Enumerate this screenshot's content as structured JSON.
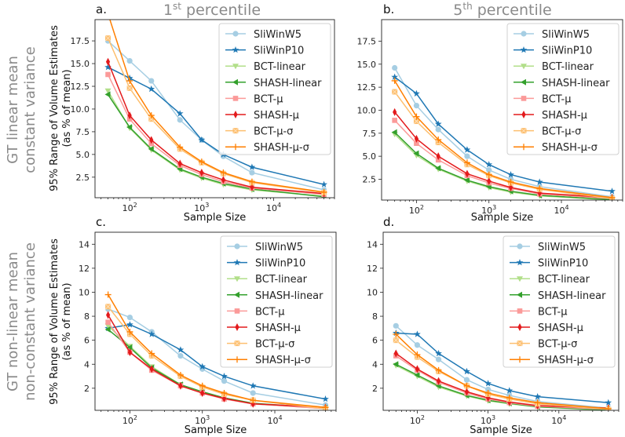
{
  "row_labels": [
    {
      "line1": "GT linear mean",
      "line2": "constant variance"
    },
    {
      "line1": "GT non-linear mean",
      "line2": "non-constant variance"
    }
  ],
  "column_titles": [
    {
      "num": "1",
      "sup": "st",
      "rest": " percentile"
    },
    {
      "num": "5",
      "sup": "th",
      "rest": " percentile"
    }
  ],
  "ylabel_line1": "95% Range of Volume Estimates",
  "ylabel_line2": "(as % of mean)",
  "styles": [
    {
      "name": "SliWinW5",
      "color": "#a6cee3",
      "marker": "circle"
    },
    {
      "name": "SliWinP10",
      "color": "#1f78b4",
      "marker": "star"
    },
    {
      "name": "BCT-linear",
      "color": "#b2df8a",
      "marker": "triangle-down"
    },
    {
      "name": "SHASH-linear",
      "color": "#33a02c",
      "marker": "triangle-left"
    },
    {
      "name": "BCT-μ",
      "color": "#fb9a99",
      "marker": "square"
    },
    {
      "name": "SHASH-μ",
      "color": "#e31a1c",
      "marker": "thin-diamond"
    },
    {
      "name": "BCT-μ-σ",
      "color": "#fdbf6f",
      "marker": "x-filled"
    },
    {
      "name": "SHASH-μ-σ",
      "color": "#ff7f00",
      "marker": "plus"
    }
  ],
  "chart_data": [
    {
      "type": "line",
      "panel_label": "a.",
      "title": "1st percentile",
      "xlabel": "Sample Size",
      "ylabel": "95% Range of Volume Estimates (as % of mean)",
      "xscale": "log",
      "xlim": [
        33,
        70000
      ],
      "ylim": [
        0.24,
        19.84
      ],
      "x": [
        50,
        100,
        200,
        500,
        1000,
        2000,
        5000,
        50000
      ],
      "xticks": [
        {
          "base": "10",
          "exp": "2",
          "value": 100
        },
        {
          "base": "10",
          "exp": "3",
          "value": 1000
        },
        {
          "base": "10",
          "exp": "4",
          "value": 10000
        }
      ],
      "yticks": [
        "2.5",
        "5.0",
        "7.5",
        "10.0",
        "12.5",
        "15.0",
        "17.5"
      ],
      "legend": "top-right",
      "series": [
        {
          "name": "SliWinW5",
          "values": [
            17.5,
            15.3,
            13.1,
            8.8,
            6.6,
            4.8,
            3.0,
            1.1
          ]
        },
        {
          "name": "SliWinP10",
          "values": [
            14.6,
            13.4,
            12.2,
            9.5,
            6.6,
            5.0,
            3.6,
            1.7
          ]
        },
        {
          "name": "BCT-linear",
          "values": [
            12.0,
            7.9,
            5.5,
            3.3,
            2.4,
            1.7,
            1.1,
            0.4
          ]
        },
        {
          "name": "SHASH-linear",
          "values": [
            11.6,
            8.0,
            5.6,
            3.4,
            2.5,
            1.8,
            1.2,
            0.35
          ]
        },
        {
          "name": "BCT-μ",
          "values": [
            13.8,
            8.9,
            6.2,
            3.8,
            2.8,
            2.0,
            1.3,
            0.6
          ]
        },
        {
          "name": "SHASH-μ",
          "values": [
            15.2,
            9.3,
            6.6,
            4.0,
            3.0,
            2.2,
            1.4,
            0.7
          ]
        },
        {
          "name": "BCT-μ-σ",
          "values": [
            17.8,
            12.3,
            8.9,
            5.6,
            4.1,
            2.9,
            1.9,
            0.8
          ]
        },
        {
          "name": "SHASH-μ-σ",
          "values": [
            20.5,
            13.1,
            9.3,
            5.8,
            4.2,
            3.0,
            2.0,
            0.85
          ]
        }
      ]
    },
    {
      "type": "line",
      "panel_label": "b.",
      "title": "5th percentile",
      "xlabel": "Sample Size",
      "ylabel": "",
      "xscale": "log",
      "xlim": [
        33,
        70000
      ],
      "ylim": [
        0.24,
        19.84
      ],
      "x": [
        50,
        100,
        200,
        500,
        1000,
        2000,
        5000,
        50000
      ],
      "xticks": [
        {
          "base": "10",
          "exp": "2",
          "value": 100
        },
        {
          "base": "10",
          "exp": "3",
          "value": 1000
        },
        {
          "base": "10",
          "exp": "4",
          "value": 10000
        }
      ],
      "yticks": [
        "2.5",
        "5.0",
        "7.5",
        "10.0",
        "12.5",
        "15.0",
        "17.5"
      ],
      "legend": "top-right",
      "series": [
        {
          "name": "SliWinW5",
          "values": [
            14.6,
            10.5,
            7.9,
            5.0,
            3.5,
            2.5,
            1.7,
            0.6
          ]
        },
        {
          "name": "SliWinP10",
          "values": [
            13.6,
            11.8,
            8.5,
            5.7,
            4.1,
            3.0,
            2.2,
            1.2
          ]
        },
        {
          "name": "BCT-linear",
          "values": [
            7.4,
            5.1,
            3.6,
            2.3,
            1.6,
            1.1,
            0.7,
            0.25
          ]
        },
        {
          "name": "SHASH-linear",
          "values": [
            7.6,
            5.3,
            3.7,
            2.4,
            1.7,
            1.2,
            0.75,
            0.3
          ]
        },
        {
          "name": "BCT-μ",
          "values": [
            8.9,
            6.4,
            4.6,
            2.9,
            2.1,
            1.5,
            0.9,
            0.4
          ]
        },
        {
          "name": "SHASH-μ",
          "values": [
            9.8,
            6.9,
            5.0,
            3.1,
            2.3,
            1.6,
            1.0,
            0.5
          ]
        },
        {
          "name": "BCT-μ-σ",
          "values": [
            12.0,
            8.8,
            6.5,
            4.1,
            2.9,
            2.1,
            1.4,
            0.4
          ]
        },
        {
          "name": "SHASH-μ-σ",
          "values": [
            13.2,
            9.3,
            6.8,
            4.3,
            3.0,
            2.2,
            1.5,
            0.5
          ]
        }
      ]
    },
    {
      "type": "line",
      "panel_label": "c.",
      "title": "",
      "xlabel": "Sample Size",
      "ylabel": "95% Range of Volume Estimates (as % of mean)",
      "xscale": "log",
      "xlim": [
        33,
        70000
      ],
      "ylim": [
        0.16,
        15.0
      ],
      "x": [
        50,
        100,
        200,
        500,
        1000,
        2000,
        5000,
        50000
      ],
      "xticks": [
        {
          "base": "10",
          "exp": "2",
          "value": 100
        },
        {
          "base": "10",
          "exp": "3",
          "value": 1000
        },
        {
          "base": "10",
          "exp": "4",
          "value": 10000
        }
      ],
      "yticks": [
        "2",
        "4",
        "6",
        "8",
        "10",
        "12",
        "14"
      ],
      "legend": "top-right",
      "series": [
        {
          "name": "SliWinW5",
          "values": [
            8.6,
            7.9,
            6.7,
            4.7,
            3.6,
            2.6,
            1.6,
            0.6
          ]
        },
        {
          "name": "SliWinP10",
          "values": [
            7.0,
            7.3,
            6.5,
            5.2,
            3.8,
            3.0,
            2.2,
            1.1
          ]
        },
        {
          "name": "BCT-linear",
          "values": [
            7.2,
            5.5,
            3.8,
            2.3,
            1.7,
            1.2,
            0.7,
            0.3
          ]
        },
        {
          "name": "SHASH-linear",
          "values": [
            6.9,
            5.4,
            3.7,
            2.3,
            1.7,
            1.2,
            0.75,
            0.35
          ]
        },
        {
          "name": "BCT-μ",
          "values": [
            7.5,
            5.0,
            3.5,
            2.2,
            1.6,
            1.1,
            0.7,
            0.3
          ]
        },
        {
          "name": "SHASH-μ",
          "values": [
            8.1,
            5.0,
            3.6,
            2.2,
            1.6,
            1.15,
            0.7,
            0.4
          ]
        },
        {
          "name": "BCT-μ-σ",
          "values": [
            8.8,
            6.5,
            4.7,
            3.0,
            2.1,
            1.5,
            1.0,
            0.3
          ]
        },
        {
          "name": "SHASH-μ-σ",
          "values": [
            9.8,
            6.7,
            4.9,
            3.1,
            2.2,
            1.6,
            1.0,
            0.4
          ]
        }
      ]
    },
    {
      "type": "line",
      "panel_label": "d.",
      "title": "",
      "xlabel": "Sample Size",
      "ylabel": "",
      "xscale": "log",
      "xlim": [
        33,
        70000
      ],
      "ylim": [
        0.16,
        15.0
      ],
      "x": [
        50,
        100,
        200,
        500,
        1000,
        2000,
        5000,
        50000
      ],
      "xticks": [
        {
          "base": "10",
          "exp": "2",
          "value": 100
        },
        {
          "base": "10",
          "exp": "3",
          "value": 1000
        },
        {
          "base": "10",
          "exp": "4",
          "value": 10000
        }
      ],
      "yticks": [
        "2",
        "4",
        "6",
        "8",
        "10",
        "12",
        "14"
      ],
      "legend": "top-right",
      "series": [
        {
          "name": "SliWinW5",
          "values": [
            7.2,
            5.6,
            4.4,
            2.7,
            1.9,
            1.4,
            0.9,
            0.35
          ]
        },
        {
          "name": "SliWinP10",
          "values": [
            6.6,
            6.5,
            4.9,
            3.4,
            2.4,
            1.8,
            1.3,
            0.8
          ]
        },
        {
          "name": "BCT-linear",
          "values": [
            3.9,
            3.0,
            2.1,
            1.35,
            0.95,
            0.7,
            0.45,
            0.15
          ]
        },
        {
          "name": "SHASH-linear",
          "values": [
            4.0,
            3.1,
            2.2,
            1.4,
            1.0,
            0.75,
            0.45,
            0.2
          ]
        },
        {
          "name": "BCT-μ",
          "values": [
            4.7,
            3.5,
            2.5,
            1.6,
            1.1,
            0.8,
            0.5,
            0.25
          ]
        },
        {
          "name": "SHASH-μ",
          "values": [
            4.9,
            3.6,
            2.6,
            1.7,
            1.2,
            0.85,
            0.55,
            0.35
          ]
        },
        {
          "name": "BCT-μ-σ",
          "values": [
            6.0,
            4.6,
            3.4,
            2.2,
            1.5,
            1.1,
            0.7,
            0.25
          ]
        },
        {
          "name": "SHASH-μ-σ",
          "values": [
            6.5,
            4.8,
            3.5,
            2.2,
            1.6,
            1.2,
            0.8,
            0.3
          ]
        }
      ]
    }
  ]
}
